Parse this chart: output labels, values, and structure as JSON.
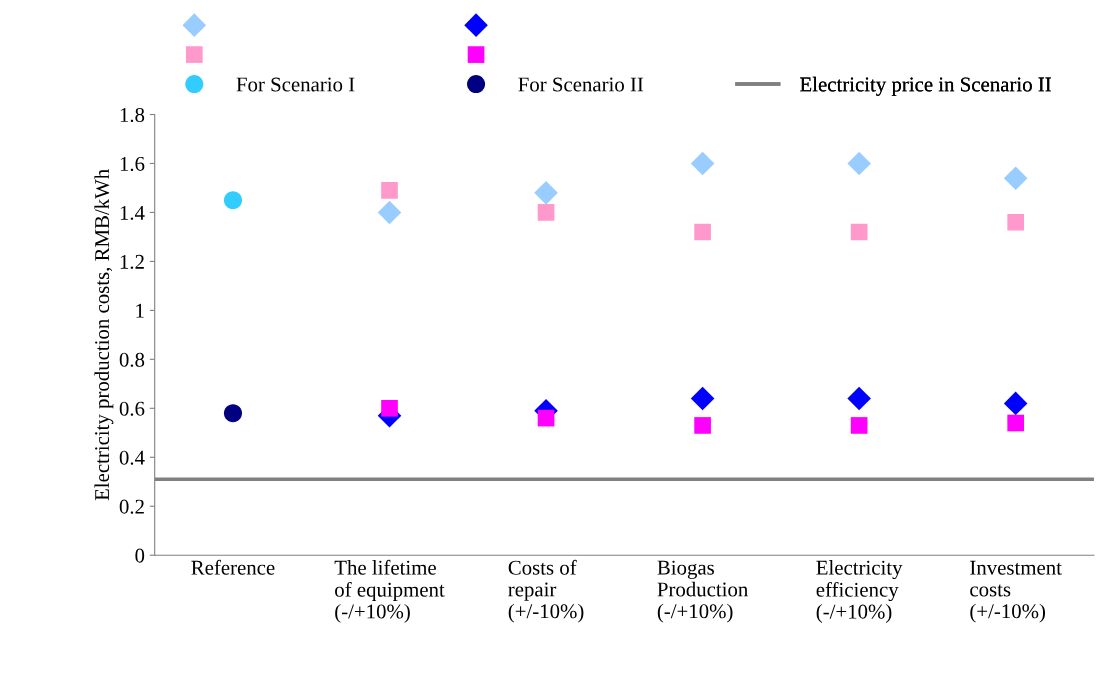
{
  "chart_data": {
    "type": "scatter",
    "ylabel": "Electricity production costs, RMB/kWh",
    "categories": [
      "Reference",
      "The lifetime\nof equipment\n(-/+10%)",
      "Costs of\nrepair\n(+/-10%)",
      "Biogas\nProduction\n(-/+10%)",
      "Electricity\nefficiency\n(-/+10%)",
      "Investment\ncosts\n(+/-10%)"
    ],
    "series": [
      {
        "color": "#99ccff",
        "marker": "diamond",
        "values": [
          null,
          1.4,
          1.48,
          1.6,
          1.6,
          1.54
        ]
      },
      {
        "color": "#ff99cc",
        "marker": "square",
        "values": [
          null,
          1.49,
          1.4,
          1.32,
          1.32,
          1.36
        ]
      },
      {
        "name": "For Scenario I",
        "color": "#33ccff",
        "marker": "circle",
        "values": [
          1.45,
          null,
          null,
          null,
          null,
          null
        ]
      },
      {
        "color": "#0000ff",
        "marker": "diamond",
        "values": [
          null,
          0.57,
          0.59,
          0.64,
          0.64,
          0.62
        ]
      },
      {
        "color": "#ff00ff",
        "marker": "square",
        "values": [
          null,
          0.6,
          0.56,
          0.53,
          0.53,
          0.54
        ]
      },
      {
        "name": "For Scenario II",
        "color": "#000080",
        "marker": "circle",
        "values": [
          0.58,
          null,
          null,
          null,
          null,
          null
        ]
      }
    ],
    "ref_lines": [
      {
        "axis": "y",
        "value": 0.31,
        "label": "Electricity price in Scenario II",
        "color": "#808080"
      }
    ],
    "ylim": [
      0,
      1.8
    ],
    "yticks": [
      0,
      0.2,
      0.4,
      0.6,
      0.8,
      1,
      1.2,
      1.4,
      1.6,
      1.8
    ],
    "grid": false,
    "legend": "top"
  }
}
